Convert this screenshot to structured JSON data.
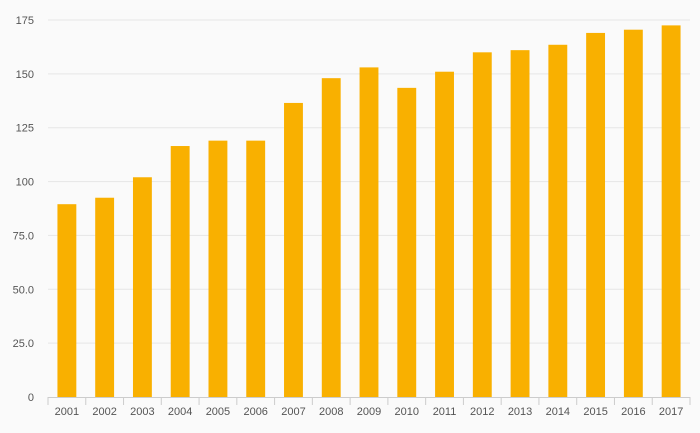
{
  "chart_data": {
    "type": "bar",
    "title": "",
    "xlabel": "",
    "ylabel": "",
    "categories": [
      "2001",
      "2002",
      "2003",
      "2004",
      "2005",
      "2006",
      "2007",
      "2008",
      "2009",
      "2010",
      "2011",
      "2012",
      "2013",
      "2014",
      "2015",
      "2016",
      "2017"
    ],
    "values": [
      89.5,
      92.5,
      102,
      116.5,
      119,
      119,
      136.5,
      148,
      153,
      143.5,
      151,
      160,
      161,
      163.5,
      169,
      170.5,
      172.5
    ],
    "ylim": [
      0,
      175
    ],
    "yticks": [
      0,
      25,
      50,
      75,
      100,
      125,
      150,
      175
    ],
    "ytick_labels": [
      "0",
      "25.0",
      "50.0",
      "75.0",
      "100",
      "125",
      "150",
      "175"
    ],
    "grid": true,
    "colors": {
      "bar": "#f9b000",
      "grid": "#e6e6e6",
      "axis": "#cccccc",
      "background": "#fafafa"
    }
  }
}
